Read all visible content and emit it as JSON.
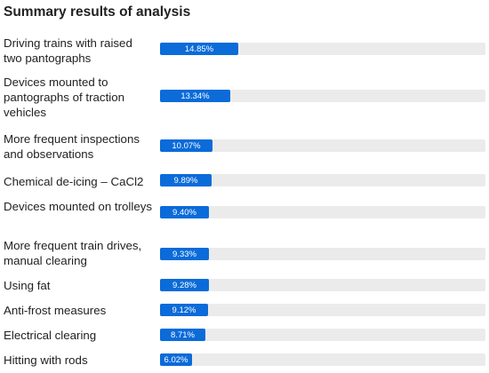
{
  "title": "Summary results of analysis",
  "chart_data": {
    "type": "bar",
    "orientation": "horizontal",
    "title": "Summary results of analysis",
    "categories": [
      "Driving trains with raised two pantographs",
      "Devices mounted to pantographs of traction vehicles",
      "More frequent inspections and observations",
      "Chemical de-icing – CaCl2",
      "Devices mounted on trolleys",
      "More frequent train drives, manual clearing",
      "Using fat",
      "Anti-frost measures",
      "Electrical clearing",
      "Hitting with rods"
    ],
    "values": [
      14.85,
      13.34,
      10.07,
      9.89,
      9.4,
      9.33,
      9.28,
      9.12,
      8.71,
      6.02
    ],
    "value_labels": [
      "14.85%",
      "13.34%",
      "10.07%",
      "9.89%",
      "9.40%",
      "9.33%",
      "9.28%",
      "9.12%",
      "8.71%",
      "6.02%"
    ],
    "unit": "%",
    "xlim": [
      0,
      62
    ],
    "grid": false,
    "legend": "none",
    "colors": {
      "bar": "#0a6bd9",
      "track": "#ebebeb",
      "value_text": "#ffffff"
    }
  }
}
